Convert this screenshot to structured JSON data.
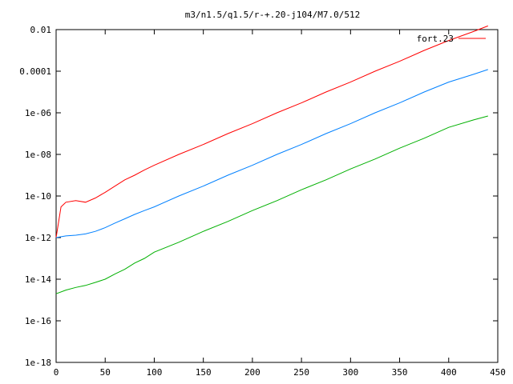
{
  "chart_data": {
    "type": "line",
    "title": "m3/n1.5/q1.5/r-+.20-j104/M7.0/512",
    "xlabel": "",
    "ylabel": "",
    "xlim": [
      0,
      450
    ],
    "ylim_log10": [
      -18,
      -2
    ],
    "y_scale": "log",
    "grid": false,
    "legend_position": "top-right",
    "x_ticks": [
      0,
      50,
      100,
      150,
      200,
      250,
      300,
      350,
      400,
      450
    ],
    "x_tick_labels": [
      "0",
      "50",
      "100",
      "150",
      "200",
      "250",
      "300",
      "350",
      "400",
      "450"
    ],
    "y_ticks_log10": [
      -2,
      -4,
      -6,
      -8,
      -10,
      -12,
      -14,
      -16,
      -18
    ],
    "y_tick_labels": [
      "0.01",
      "0.0001",
      "1e-06",
      "1e-08",
      "1e-10",
      "1e-12",
      "1e-14",
      "1e-16",
      "1e-18"
    ],
    "series": [
      {
        "name": "fort.23",
        "color": "#ff0000",
        "x": [
          0,
          5,
          10,
          20,
          30,
          40,
          50,
          60,
          70,
          80,
          90,
          100,
          125,
          150,
          175,
          200,
          225,
          250,
          275,
          300,
          325,
          350,
          375,
          400,
          425,
          440
        ],
        "y": [
          1e-12,
          3e-11,
          5e-11,
          6e-11,
          5e-11,
          8e-11,
          1.5e-10,
          3e-10,
          6e-10,
          1e-09,
          1.8e-09,
          3e-09,
          1e-08,
          3e-08,
          1e-07,
          3e-07,
          1e-06,
          3e-06,
          1e-05,
          3e-05,
          0.0001,
          0.0003,
          0.001,
          0.003,
          0.008,
          0.015
        ]
      },
      {
        "color": "#0080ff",
        "x": [
          0,
          10,
          20,
          30,
          40,
          50,
          60,
          70,
          80,
          90,
          100,
          125,
          150,
          175,
          200,
          225,
          250,
          275,
          300,
          325,
          350,
          375,
          400,
          425,
          440
        ],
        "y": [
          1e-12,
          1.2e-12,
          1.3e-12,
          1.5e-12,
          2e-12,
          3e-12,
          5e-12,
          8e-12,
          1.3e-11,
          2e-11,
          3e-11,
          1e-10,
          3e-10,
          1e-09,
          3e-09,
          1e-08,
          3e-08,
          1e-07,
          3e-07,
          1e-06,
          3e-06,
          1e-05,
          3e-05,
          7e-05,
          0.00012
        ]
      },
      {
        "color": "#00b000",
        "x": [
          0,
          10,
          20,
          30,
          40,
          50,
          60,
          70,
          80,
          90,
          100,
          125,
          150,
          175,
          200,
          225,
          250,
          275,
          300,
          325,
          350,
          375,
          400,
          425,
          440
        ],
        "y": [
          2e-15,
          3e-15,
          4e-15,
          5e-15,
          7e-15,
          1e-14,
          1.8e-14,
          3e-14,
          6e-14,
          1e-13,
          2e-13,
          6e-13,
          2e-12,
          6e-12,
          2e-11,
          6e-11,
          2e-10,
          6e-10,
          2e-09,
          6e-09,
          2e-08,
          6e-08,
          2e-07,
          4.5e-07,
          7e-07
        ]
      }
    ]
  }
}
